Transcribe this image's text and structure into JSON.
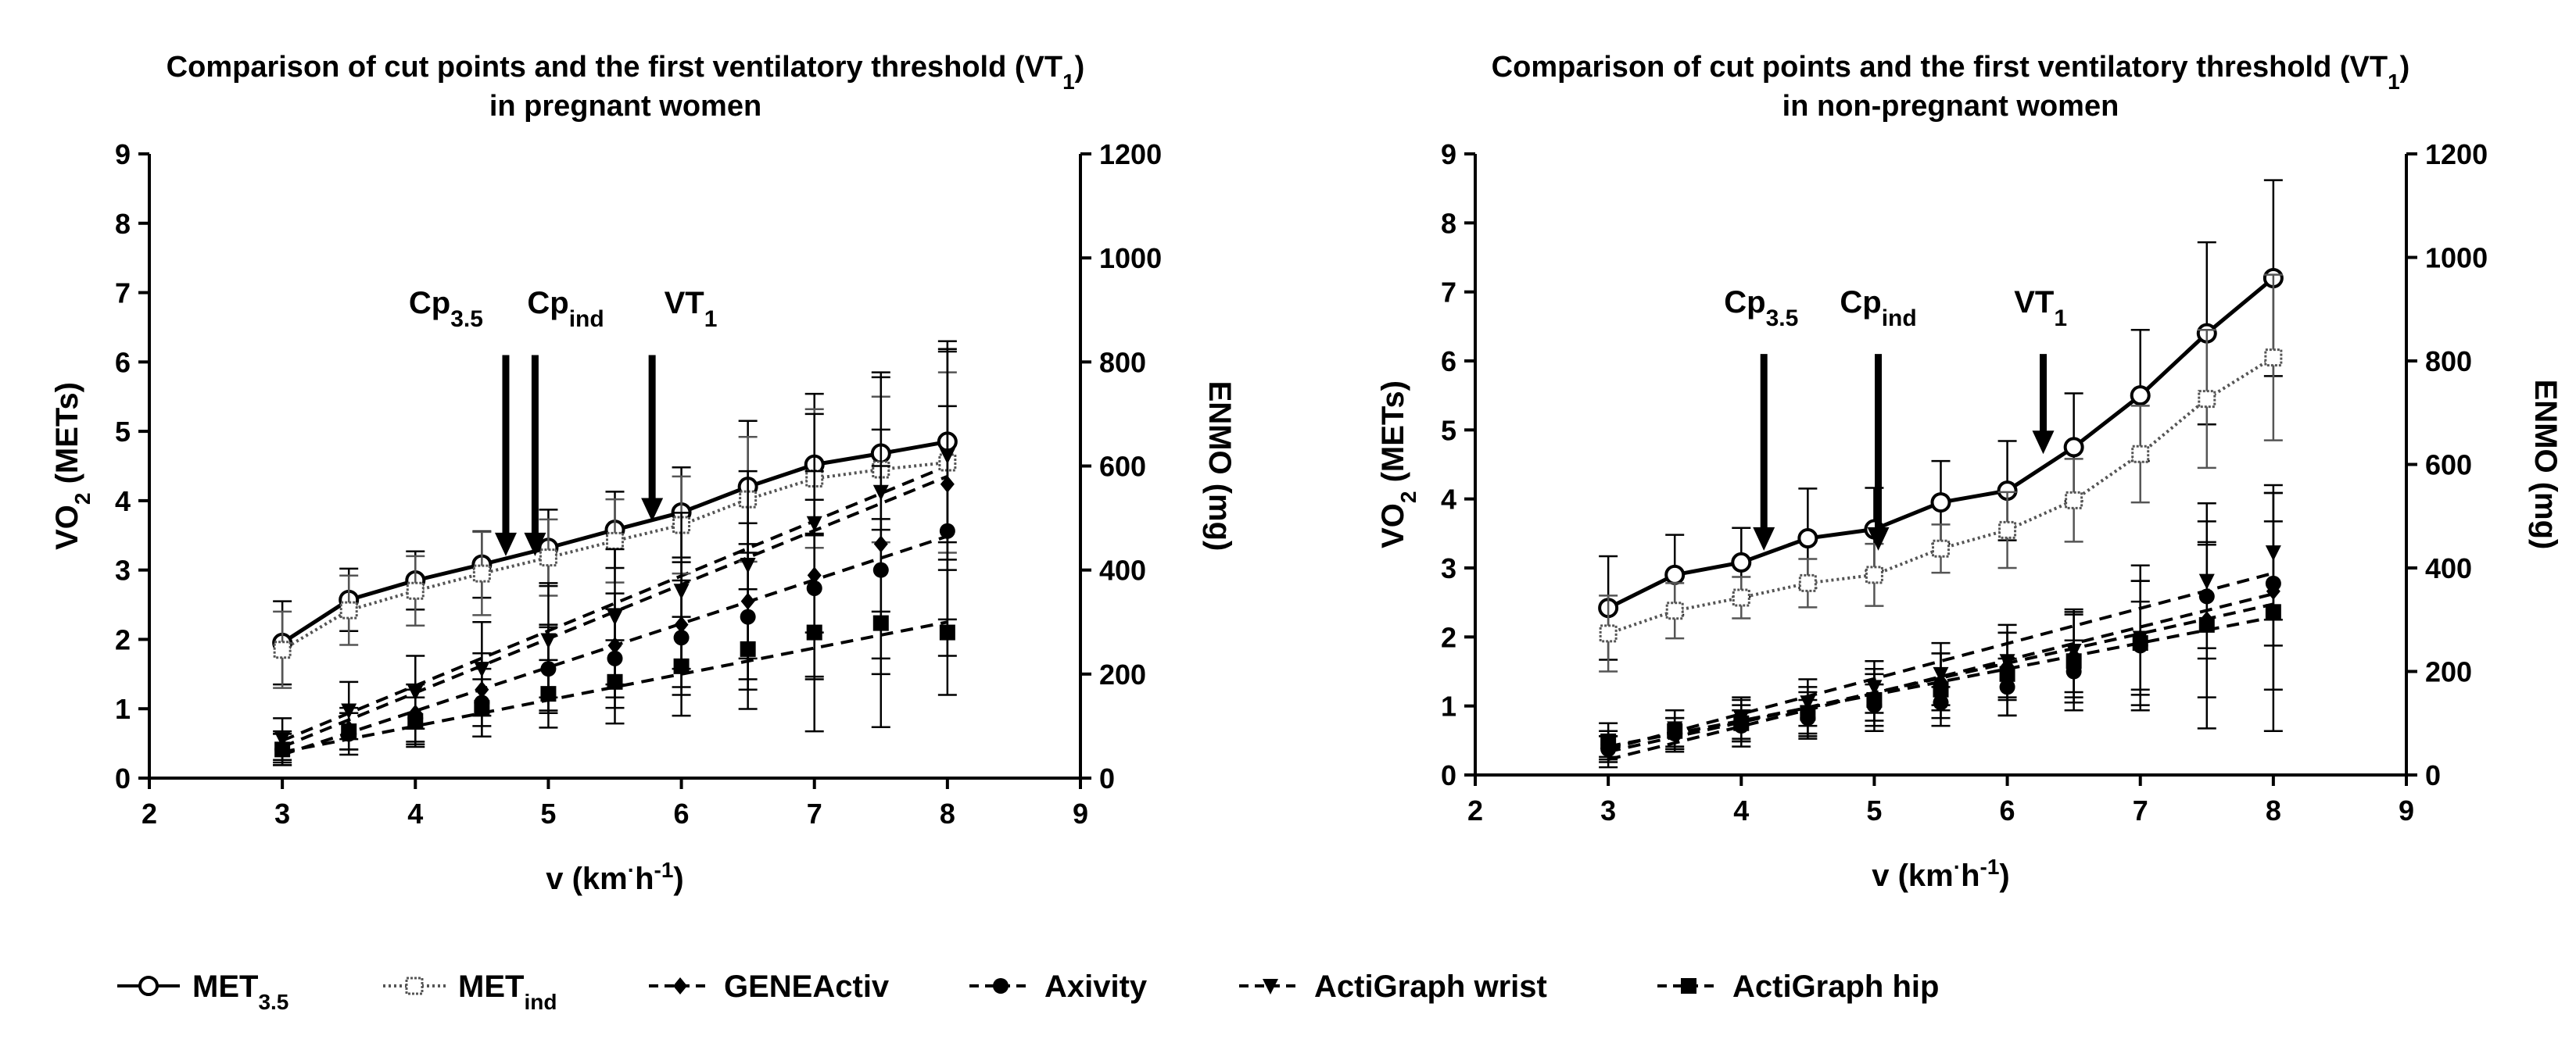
{
  "chart_data": [
    {
      "type": "line",
      "title_line1": "Comparison of cut points and the first ventilatory threshold (VT",
      "title_sub": "1",
      "title_close": ")",
      "title_line2": "in pregnant women",
      "xlabel_pre": "v (km",
      "xlabel_dot": "·",
      "xlabel_unit": "h",
      "xlabel_sup": "-1",
      "xlabel_close": ")",
      "ylabel_main": "VO",
      "ylabel_sub": "2",
      "ylabel_rest": " (METs)",
      "y2label": "ENMO (mg)",
      "xlim": [
        2,
        9
      ],
      "ylim": [
        0,
        9
      ],
      "y2lim": [
        0,
        1200
      ],
      "x_ticks": [
        "2",
        "3",
        "4",
        "5",
        "6",
        "7",
        "8",
        "9"
      ],
      "y_ticks": [
        "0",
        "1",
        "2",
        "3",
        "4",
        "5",
        "6",
        "7",
        "8",
        "9"
      ],
      "y2_ticks": [
        "0",
        "200",
        "400",
        "600",
        "800",
        "1000",
        "1200"
      ],
      "x": [
        3,
        3.5,
        4,
        4.5,
        5,
        5.5,
        6,
        6.5,
        7,
        7.5,
        8
      ],
      "series": [
        {
          "name": "MET3.5",
          "axis": "left",
          "values": [
            1.95,
            2.57,
            2.85,
            3.08,
            3.32,
            3.58,
            3.83,
            4.2,
            4.52,
            4.68,
            4.85
          ],
          "sd": [
            0.6,
            0.45,
            0.42,
            0.48,
            0.55,
            0.55,
            0.65,
            0.95,
            1.02,
            1.1,
            1.45
          ]
        },
        {
          "name": "METind",
          "axis": "left",
          "values": [
            1.85,
            2.42,
            2.7,
            2.95,
            3.18,
            3.42,
            3.65,
            4.02,
            4.32,
            4.45,
            4.55
          ],
          "sd": [
            0.55,
            0.5,
            0.5,
            0.6,
            0.55,
            0.6,
            0.7,
            0.9,
            1.0,
            1.05,
            1.3
          ]
        },
        {
          "name": "GENEActiv",
          "axis": "right",
          "values": [
            60,
            95,
            125,
            170,
            210,
            255,
            295,
            340,
            390,
            450,
            565
          ],
          "sd": [
            30,
            40,
            55,
            70,
            85,
            100,
            120,
            150,
            200,
            220,
            260
          ]
        },
        {
          "name": "Axivity",
          "axis": "right",
          "values": [
            55,
            85,
            115,
            145,
            210,
            230,
            270,
            310,
            365,
            400,
            475
          ],
          "sd": [
            30,
            40,
            55,
            65,
            80,
            95,
            110,
            140,
            170,
            200,
            240
          ]
        },
        {
          "name": "ActiGraph wrist",
          "axis": "right",
          "values": [
            75,
            130,
            165,
            210,
            265,
            310,
            360,
            410,
            490,
            550,
            620
          ],
          "sd": [
            40,
            55,
            70,
            90,
            110,
            130,
            150,
            180,
            210,
            230,
            200
          ]
        },
        {
          "name": "ActiGraph hip",
          "axis": "right",
          "values": [
            55,
            90,
            110,
            135,
            162,
            185,
            215,
            248,
            280,
            298,
            280
          ],
          "sd": [
            30,
            35,
            45,
            55,
            65,
            80,
            95,
            115,
            190,
            200,
            120
          ]
        }
      ],
      "fits": [
        {
          "name": "GENEActiv",
          "from": 60,
          "to": 580
        },
        {
          "name": "Axivity",
          "from": 45,
          "to": 465
        },
        {
          "name": "ActiGraph wrist",
          "from": 72,
          "to": 600
        },
        {
          "name": "ActiGraph hip",
          "from": 50,
          "to": 300
        }
      ],
      "arrows": [
        {
          "label": "Cp",
          "sub": "3.5",
          "x": 4.68,
          "y_tip": 3.2,
          "label_x": 4.23
        },
        {
          "label": "Cp",
          "sub": "ind",
          "x": 4.9,
          "y_tip": 3.2,
          "label_x": 5.13
        },
        {
          "label": "VT",
          "sub": "1",
          "x": 5.78,
          "y_tip": 3.7,
          "label_x": 6.07
        }
      ],
      "label_y": 6.7
    },
    {
      "type": "line",
      "title_line1": "Comparison of cut points and the first ventilatory threshold (VT",
      "title_sub": "1",
      "title_close": ")",
      "title_line2": "in non-pregnant women",
      "xlabel_pre": "v (km",
      "xlabel_dot": "·",
      "xlabel_unit": "h",
      "xlabel_sup": "-1",
      "xlabel_close": ")",
      "ylabel_main": "VO",
      "ylabel_sub": "2",
      "ylabel_rest": " (METs)",
      "y2label": "ENMO (mg)",
      "xlim": [
        2,
        9
      ],
      "ylim": [
        0,
        9
      ],
      "y2lim": [
        0,
        1200
      ],
      "x_ticks": [
        "2",
        "3",
        "4",
        "5",
        "6",
        "7",
        "8",
        "9"
      ],
      "y_ticks": [
        "0",
        "1",
        "2",
        "3",
        "4",
        "5",
        "6",
        "7",
        "8",
        "9"
      ],
      "y2_ticks": [
        "0",
        "200",
        "400",
        "600",
        "800",
        "1000",
        "1200"
      ],
      "x": [
        3,
        3.5,
        4,
        4.5,
        5,
        5.5,
        6,
        6.5,
        7,
        7.5,
        8
      ],
      "series": [
        {
          "name": "MET3.5",
          "axis": "left",
          "values": [
            2.42,
            2.9,
            3.08,
            3.43,
            3.56,
            3.95,
            4.12,
            4.75,
            5.5,
            6.4,
            7.2
          ],
          "sd": [
            0.75,
            0.58,
            0.5,
            0.72,
            0.6,
            0.6,
            0.72,
            0.78,
            0.95,
            1.32,
            1.42
          ]
        },
        {
          "name": "METind",
          "axis": "left",
          "values": [
            2.05,
            2.38,
            2.57,
            2.78,
            2.9,
            3.28,
            3.55,
            3.98,
            4.65,
            5.45,
            6.05
          ],
          "sd": [
            0.55,
            0.4,
            0.3,
            0.35,
            0.45,
            0.35,
            0.55,
            0.6,
            0.7,
            1.0,
            1.2
          ]
        },
        {
          "name": "GENEActiv",
          "axis": "right",
          "values": [
            60,
            80,
            100,
            120,
            150,
            180,
            210,
            230,
            265,
            300,
            355
          ],
          "sd": [
            25,
            30,
            35,
            40,
            45,
            55,
            65,
            80,
            110,
            150,
            190
          ]
        },
        {
          "name": "Axivity",
          "axis": "right",
          "values": [
            50,
            80,
            95,
            110,
            135,
            140,
            170,
            200,
            250,
            345,
            370
          ],
          "sd": [
            25,
            30,
            30,
            35,
            40,
            30,
            55,
            60,
            85,
            100,
            120
          ]
        },
        {
          "name": "ActiGraph wrist",
          "axis": "right",
          "values": [
            45,
            90,
            110,
            140,
            170,
            195,
            220,
            240,
            265,
            375,
            430
          ],
          "sd": [
            30,
            35,
            40,
            45,
            50,
            60,
            70,
            80,
            140,
            150,
            130
          ]
        },
        {
          "name": "ActiGraph hip",
          "axis": "right",
          "values": [
            65,
            85,
            100,
            120,
            145,
            165,
            195,
            220,
            255,
            290,
            315
          ],
          "sd": [
            35,
            40,
            45,
            50,
            60,
            70,
            80,
            95,
            120,
            200,
            230
          ]
        }
      ],
      "fits": [
        {
          "name": "GENEActiv",
          "from": 30,
          "to": 350
        },
        {
          "name": "Axivity",
          "from": 45,
          "to": 330
        },
        {
          "name": "ActiGraph wrist",
          "from": 50,
          "to": 390
        },
        {
          "name": "ActiGraph hip",
          "from": 55,
          "to": 305
        }
      ],
      "arrows": [
        {
          "label": "Cp",
          "sub": "3.5",
          "x": 4.17,
          "y_tip": 3.25,
          "label_x": 4.15
        },
        {
          "label": "Cp",
          "sub": "ind",
          "x": 5.03,
          "y_tip": 3.25,
          "label_x": 5.03
        },
        {
          "label": "VT",
          "sub": "1",
          "x": 6.27,
          "y_tip": 4.65,
          "label_x": 6.25
        }
      ],
      "label_y": 6.7
    }
  ],
  "legend": [
    {
      "name": "MET",
      "sub": "3.5",
      "marker": "circle-open",
      "line": "solid"
    },
    {
      "name": "MET",
      "sub": "ind",
      "marker": "square-open",
      "line": "dotted"
    },
    {
      "name": "GENEActiv",
      "sub": "",
      "marker": "diamond",
      "line": "dashed"
    },
    {
      "name": "Axivity",
      "sub": "",
      "marker": "circle",
      "line": "dashed"
    },
    {
      "name": "ActiGraph wrist",
      "sub": "",
      "marker": "triangle-down",
      "line": "dashed"
    },
    {
      "name": "ActiGraph hip",
      "sub": "",
      "marker": "square",
      "line": "dashed"
    }
  ]
}
